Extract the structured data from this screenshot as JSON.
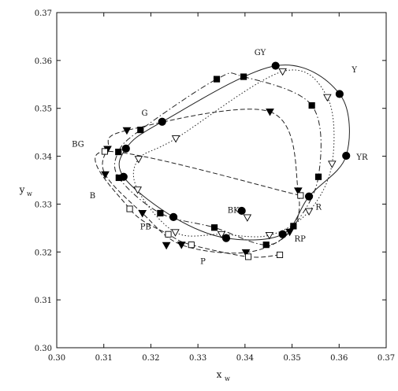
{
  "chart_data": {
    "type": "scatter",
    "title": "",
    "xlabel": "x",
    "xlabel_sub": "w",
    "ylabel": "y",
    "ylabel_sub": "w",
    "xlim": [
      0.3,
      0.37
    ],
    "ylim": [
      0.3,
      0.37
    ],
    "xticks": [
      "0.30",
      "0.31",
      "0.32",
      "0.33",
      "0.34",
      "0.35",
      "0.36",
      "0.37"
    ],
    "yticks": [
      "0.30",
      "0.31",
      "0.32",
      "0.33",
      "0.34",
      "0.35",
      "0.36",
      "0.37"
    ],
    "grid": false,
    "series": [
      {
        "marker": "circle-filled",
        "line": "solid",
        "points": [
          [
            0.3465,
            0.3589
          ],
          [
            0.3601,
            0.353
          ],
          [
            0.3615,
            0.3401
          ],
          [
            0.3536,
            0.3316
          ],
          [
            0.348,
            0.3237
          ],
          [
            0.336,
            0.3229
          ],
          [
            0.3248,
            0.3273
          ],
          [
            0.3142,
            0.3357
          ],
          [
            0.3147,
            0.3416
          ],
          [
            0.3224,
            0.3472
          ]
        ]
      },
      {
        "marker": "square-filled",
        "line": "dashdot",
        "points": [
          [
            0.3397,
            0.3566
          ],
          [
            0.3542,
            0.3506
          ],
          [
            0.3556,
            0.3357
          ],
          [
            0.3503,
            0.3254
          ],
          [
            0.3445,
            0.3215
          ],
          [
            0.3335,
            0.3251
          ],
          [
            0.322,
            0.3281
          ],
          [
            0.3132,
            0.3355
          ],
          [
            0.3131,
            0.3409
          ],
          [
            0.3178,
            0.3455
          ],
          [
            0.334,
            0.3561
          ]
        ]
      },
      {
        "marker": "triangle-filled",
        "line": "dashed",
        "points": [
          [
            0.3453,
            0.3493
          ],
          [
            0.3513,
            0.3328
          ],
          [
            0.3495,
            0.3242
          ],
          [
            0.3402,
            0.3199
          ],
          [
            0.3265,
            0.3215
          ],
          [
            0.3182,
            0.3281
          ],
          [
            0.3103,
            0.3362
          ],
          [
            0.3108,
            0.3415
          ],
          [
            0.3149,
            0.3454
          ]
        ]
      },
      {
        "marker": "triangle-open",
        "line": "dotted",
        "points": [
          [
            0.348,
            0.3577
          ],
          [
            0.3575,
            0.3523
          ],
          [
            0.3585,
            0.3384
          ],
          [
            0.3536,
            0.3285
          ],
          [
            0.3452,
            0.3235
          ],
          [
            0.335,
            0.3237
          ],
          [
            0.3252,
            0.3241
          ],
          [
            0.3172,
            0.333
          ],
          [
            0.3174,
            0.3394
          ],
          [
            0.3253,
            0.3437
          ]
        ]
      },
      {
        "marker": "square-open",
        "line": "dashed",
        "points": [
          [
            0.3474,
            0.3194
          ],
          [
            0.3407,
            0.319
          ],
          [
            0.3286,
            0.3215
          ],
          [
            0.3237,
            0.3237
          ],
          [
            0.3155,
            0.329
          ],
          [
            0.3102,
            0.341
          ],
          [
            0.3518,
            0.3318
          ]
        ]
      }
    ],
    "markers_extra": [
      {
        "marker": "circle-filled",
        "x": 0.3393,
        "y": 0.3286
      },
      {
        "marker": "triangle-open",
        "x": 0.3405,
        "y": 0.3272
      },
      {
        "marker": "triangle-filled",
        "x": 0.3233,
        "y": 0.3214
      }
    ],
    "annotations": [
      {
        "text": "GY",
        "x": 0.342,
        "y": 0.3611
      },
      {
        "text": "Y",
        "x": 0.3627,
        "y": 0.3575
      },
      {
        "text": "YR",
        "x": 0.3637,
        "y": 0.3393
      },
      {
        "text": "R",
        "x": 0.355,
        "y": 0.3288
      },
      {
        "text": "RP",
        "x": 0.3505,
        "y": 0.3222
      },
      {
        "text": "P",
        "x": 0.3305,
        "y": 0.3175
      },
      {
        "text": "PB",
        "x": 0.3177,
        "y": 0.3247
      },
      {
        "text": "B",
        "x": 0.307,
        "y": 0.3312
      },
      {
        "text": "BG",
        "x": 0.3032,
        "y": 0.342
      },
      {
        "text": "G",
        "x": 0.318,
        "y": 0.3485
      },
      {
        "text": "BK",
        "x": 0.3363,
        "y": 0.3282
      }
    ]
  }
}
